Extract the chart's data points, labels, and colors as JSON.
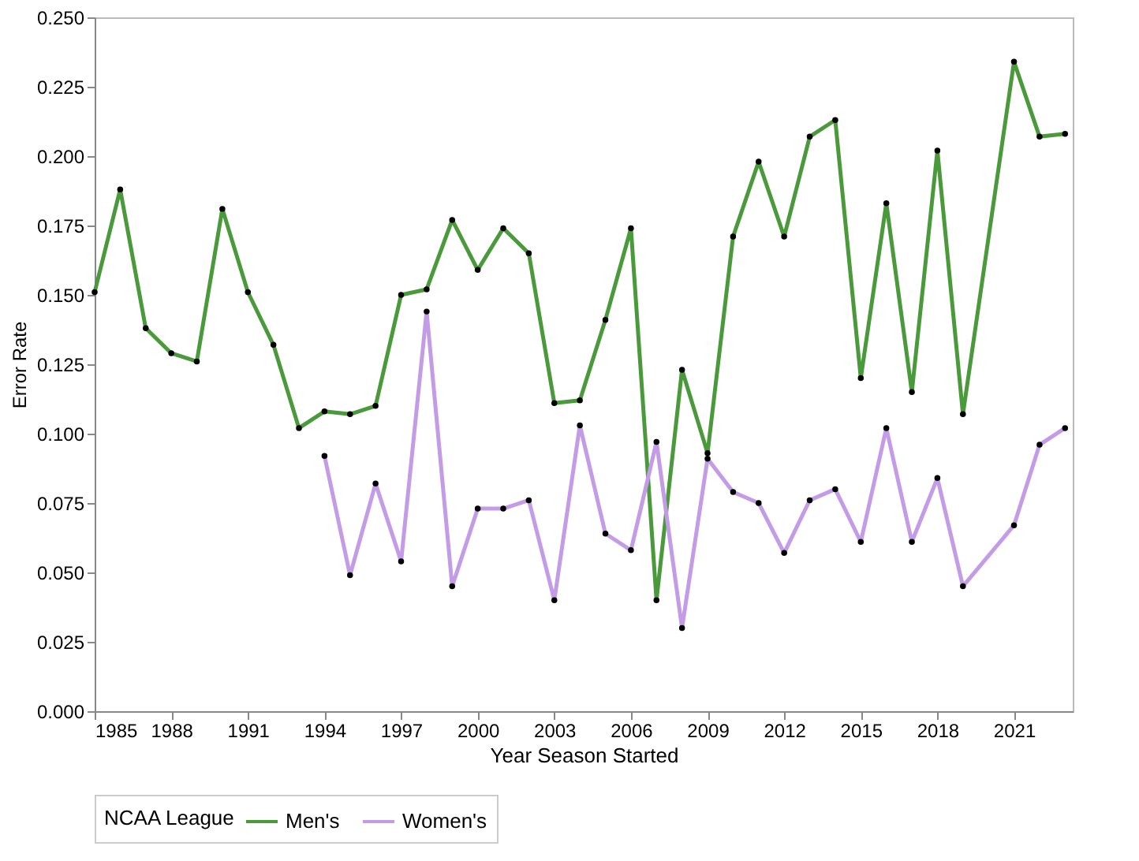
{
  "chart_data": {
    "type": "line",
    "xlabel": "Year Season Started",
    "ylabel": "Error Rate",
    "legend_title": "NCAA League",
    "legend": "bottom",
    "grid": false,
    "marker": "circle",
    "line_style": "solid",
    "xlim": [
      1985,
      2023.3
    ],
    "xticks": [
      1985,
      1988,
      1991,
      1994,
      1997,
      2000,
      2003,
      2006,
      2009,
      2012,
      2015,
      2018,
      2021
    ],
    "ylim": [
      0,
      0.25
    ],
    "yticks": [
      {
        "value": 0,
        "label": "0.000"
      },
      {
        "value": 0.025,
        "label": "0.025"
      },
      {
        "value": 0.05,
        "label": "0.050"
      },
      {
        "value": 0.075,
        "label": "0.075"
      },
      {
        "value": 0.1,
        "label": "0.100"
      },
      {
        "value": 0.125,
        "label": "0.125"
      },
      {
        "value": 0.15,
        "label": "0.150"
      },
      {
        "value": 0.175,
        "label": "0.175"
      },
      {
        "value": 0.2,
        "label": "0.200"
      },
      {
        "value": 0.225,
        "label": "0.225"
      },
      {
        "value": 0.25,
        "label": "0.250"
      }
    ],
    "series": [
      {
        "name": "Men's",
        "color": "#4a9a3c",
        "x": [
          1985,
          1986,
          1987,
          1988,
          1989,
          1990,
          1991,
          1992,
          1993,
          1994,
          1995,
          1996,
          1997,
          1998,
          1999,
          2000,
          2001,
          2002,
          2003,
          2004,
          2005,
          2006,
          2007,
          2008,
          2009,
          2010,
          2011,
          2012,
          2013,
          2014,
          2015,
          2016,
          2017,
          2018,
          2019,
          2021,
          2022,
          2023
        ],
        "values": [
          0.151,
          0.188,
          0.138,
          0.129,
          0.126,
          0.181,
          0.151,
          0.132,
          0.102,
          0.108,
          0.107,
          0.11,
          0.15,
          0.152,
          0.177,
          0.159,
          0.174,
          0.165,
          0.111,
          0.112,
          0.141,
          0.174,
          0.04,
          0.123,
          0.093,
          0.171,
          0.198,
          0.171,
          0.207,
          0.213,
          0.12,
          0.183,
          0.115,
          0.202,
          0.107,
          0.234,
          0.207,
          0.208
        ]
      },
      {
        "name": "Women's",
        "color": "#c39be6",
        "x": [
          1994,
          1995,
          1996,
          1997,
          1998,
          1999,
          2000,
          2001,
          2002,
          2003,
          2004,
          2005,
          2006,
          2007,
          2008,
          2009,
          2010,
          2011,
          2012,
          2013,
          2014,
          2015,
          2016,
          2017,
          2018,
          2019,
          2021,
          2022,
          2023
        ],
        "values": [
          0.092,
          0.049,
          0.082,
          0.054,
          0.144,
          0.045,
          0.073,
          0.073,
          0.076,
          0.04,
          0.103,
          0.064,
          0.058,
          0.097,
          0.03,
          0.091,
          0.079,
          0.075,
          0.057,
          0.076,
          0.08,
          0.061,
          0.102,
          0.061,
          0.084,
          0.045,
          0.067,
          0.096,
          0.102
        ]
      }
    ]
  }
}
